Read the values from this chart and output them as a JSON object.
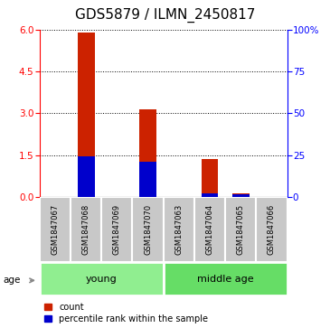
{
  "title": "GDS5879 / ILMN_2450817",
  "samples": [
    "GSM1847067",
    "GSM1847068",
    "GSM1847069",
    "GSM1847070",
    "GSM1847063",
    "GSM1847064",
    "GSM1847065",
    "GSM1847066"
  ],
  "count_values": [
    0.0,
    5.9,
    0.0,
    3.15,
    0.0,
    1.35,
    0.12,
    0.0
  ],
  "percentile_values": [
    0.0,
    24.0,
    0.0,
    21.0,
    0.0,
    2.0,
    1.3,
    0.0
  ],
  "groups": [
    {
      "label": "young",
      "start": 0,
      "end": 4,
      "color": "#90EE90"
    },
    {
      "label": "middle age",
      "start": 4,
      "end": 8,
      "color": "#66DD66"
    }
  ],
  "age_label": "age",
  "ylim_left": [
    0,
    6
  ],
  "ylim_right": [
    0,
    100
  ],
  "yticks_left": [
    0,
    1.5,
    3.0,
    4.5,
    6.0
  ],
  "yticks_right": [
    0,
    25,
    50,
    75,
    100
  ],
  "bar_color_red": "#CC2200",
  "bar_color_blue": "#0000CC",
  "bar_width": 0.55,
  "sample_box_color": "#C8C8C8",
  "legend_count": "count",
  "legend_percentile": "percentile rank within the sample",
  "title_fontsize": 11,
  "tick_fontsize": 7.5,
  "sample_fontsize": 6,
  "group_fontsize": 8,
  "legend_fontsize": 7
}
